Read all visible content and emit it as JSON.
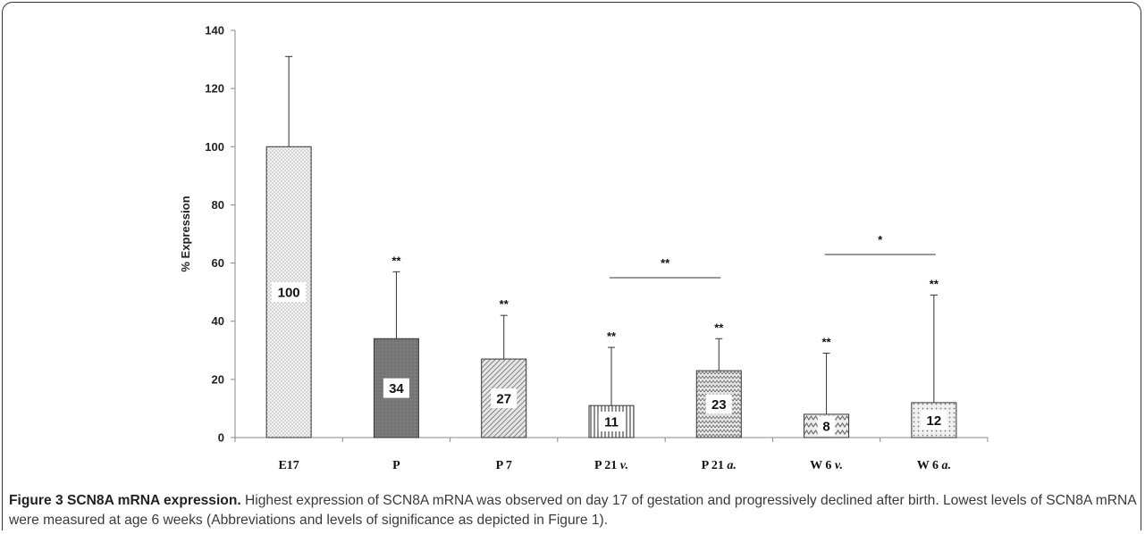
{
  "chart_data": {
    "type": "bar",
    "categories": [
      "E17",
      "P",
      "P 7",
      "P 21 v.",
      "P 21 a.",
      "W 6 v.",
      "W 6 a."
    ],
    "category_parts": [
      {
        "base": "E17",
        "suffix": ""
      },
      {
        "base": "P",
        "suffix": ""
      },
      {
        "base": "P 7",
        "suffix": ""
      },
      {
        "base": "P 21 ",
        "suffix": "v."
      },
      {
        "base": "P 21 ",
        "suffix": "a."
      },
      {
        "base": "W 6 ",
        "suffix": "v."
      },
      {
        "base": "W 6 ",
        "suffix": "a."
      }
    ],
    "values": [
      100,
      34,
      27,
      11,
      23,
      8,
      12
    ],
    "value_labels": [
      "100",
      "34",
      "27",
      "11",
      "23",
      "8",
      "12"
    ],
    "error_upper": [
      131,
      57,
      42,
      31,
      34,
      29,
      49
    ],
    "significance": [
      "",
      "**",
      "**",
      "**",
      "**",
      "**",
      "**"
    ],
    "brackets": [
      {
        "from": 3,
        "to": 4,
        "label": "**"
      },
      {
        "from": 5,
        "to": 6,
        "label": "*"
      }
    ],
    "ylabel": "% Expression",
    "xlabel": "",
    "title": "",
    "ylim": [
      0,
      140
    ],
    "yticks": [
      0,
      20,
      40,
      60,
      80,
      100,
      120,
      140
    ],
    "grid": false,
    "legend": "none",
    "bar_patterns": [
      "dots-light",
      "solid-dark",
      "diagonal",
      "vertical",
      "zigzag",
      "zigzag-coarse",
      "dots-grid"
    ]
  },
  "caption": {
    "label": "Figure 3 SCN8A mRNA expression.",
    "text": " Highest expression of SCN8A mRNA was observed on day 17 of gestation and progressively declined after birth. Lowest levels of SCN8A mRNA were measured at age 6 weeks (Abbreviations and levels of significance as depicted in Figure 1)."
  }
}
